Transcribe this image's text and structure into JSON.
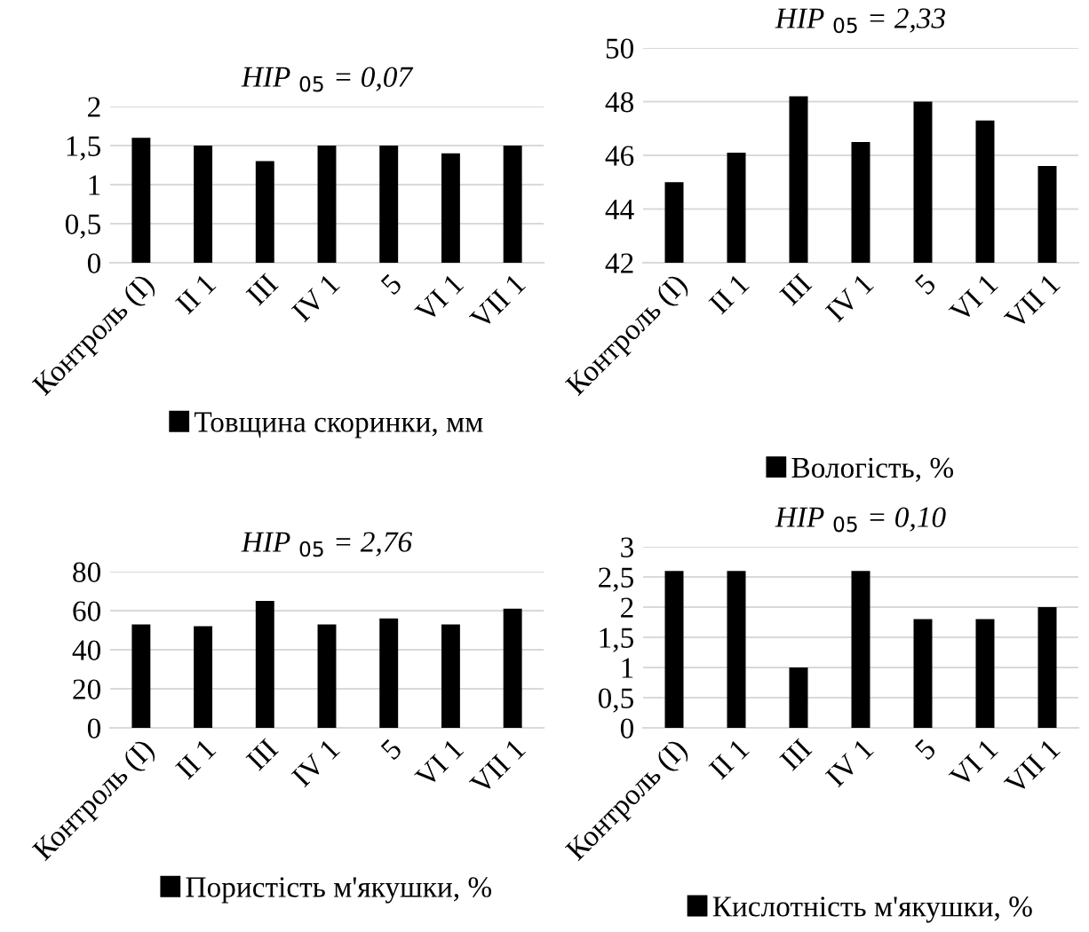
{
  "chart_data": [
    {
      "type": "bar",
      "title": "HIP $_{05}$ = 0,07",
      "categories": [
        "Контроль (I)",
        "II 1",
        "III",
        "IV 1",
        "5",
        "VI 1",
        "VII 1"
      ],
      "series": [
        {
          "name": "Товщина скоринки, мм",
          "color": "#000000",
          "values": [
            1.6,
            1.5,
            1.3,
            1.5,
            1.5,
            1.4,
            1.5
          ]
        }
      ],
      "ylim": [
        0,
        2
      ],
      "yticks": [
        0,
        {
          "value": 0.5,
          "label": "0,5"
        },
        1,
        {
          "value": 1.5,
          "label": "1,5"
        },
        2
      ],
      "grid": "y",
      "legend": "bottom"
    },
    {
      "type": "bar",
      "title": "HIP $_{05}$ = 2,33",
      "categories": [
        "Контроль (I)",
        "II 1",
        "III",
        "IV 1",
        "5",
        "VI 1",
        "VII 1"
      ],
      "series": [
        {
          "name": "Вологість, %",
          "color": "#000000",
          "values": [
            45,
            46.1,
            48.2,
            46.5,
            48,
            47.3,
            45.6
          ]
        }
      ],
      "ylim": [
        42,
        50
      ],
      "yticks": [
        42,
        44,
        46,
        48,
        50
      ],
      "grid": "y",
      "legend": "bottom"
    },
    {
      "type": "bar",
      "title": "HIP $_{05}$ = 2,76",
      "categories": [
        "Контроль (I)",
        "II 1",
        "III",
        "IV 1",
        "5",
        "VI 1",
        "VII 1"
      ],
      "series": [
        {
          "name": "Пористість м'якушки, %",
          "color": "#000000",
          "values": [
            53,
            52,
            65,
            53,
            56,
            53,
            61
          ]
        }
      ],
      "ylim": [
        0,
        80
      ],
      "yticks": [
        0,
        20,
        40,
        60,
        80
      ],
      "grid": "y",
      "legend": "bottom"
    },
    {
      "type": "bar",
      "title": "HIP $_{05}$ = 0,10",
      "categories": [
        "Контроль (I)",
        "II 1",
        "III",
        "IV 1",
        "5",
        "VI 1",
        "VII 1"
      ],
      "series": [
        {
          "name": "Кислотність м'якушки, %",
          "color": "#000000",
          "values": [
            2.6,
            2.6,
            1.0,
            2.6,
            1.8,
            1.8,
            2.0
          ]
        }
      ],
      "ylim": [
        0,
        3
      ],
      "yticks": [
        0,
        {
          "value": 0.5,
          "label": "0,5"
        },
        1,
        {
          "value": 1.5,
          "label": "1,5"
        },
        2,
        {
          "value": 2.5,
          "label": "2,5"
        },
        3
      ],
      "grid": "y",
      "legend": "bottom"
    }
  ]
}
